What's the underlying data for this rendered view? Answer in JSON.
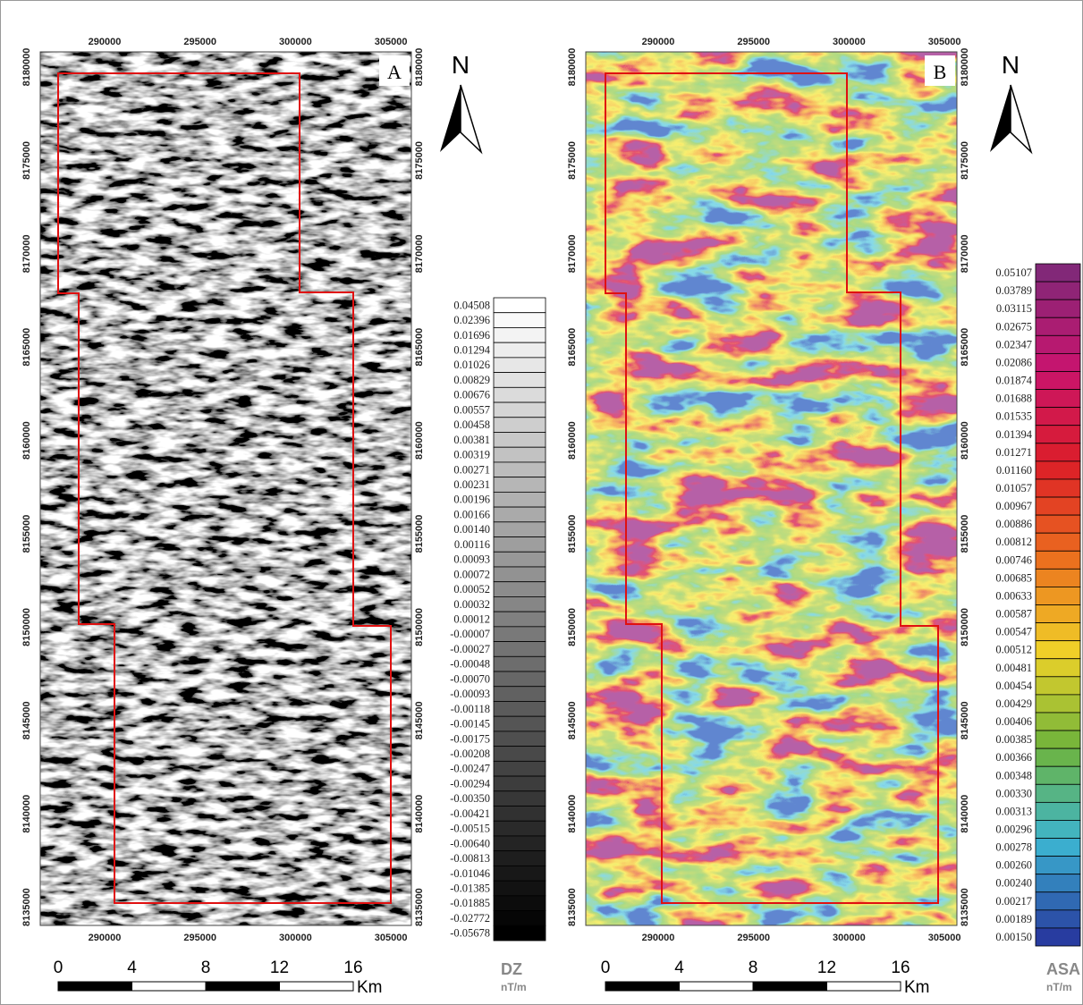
{
  "panels": [
    {
      "label": "A",
      "north": "N",
      "x_ticks": [
        "290000",
        "295000",
        "300000",
        "305000"
      ],
      "y_ticks": [
        "8180000",
        "8175000",
        "8170000",
        "8165000",
        "8160000",
        "8155000",
        "8150000",
        "8145000",
        "8140000",
        "8135000"
      ],
      "legend": {
        "title": "DZ",
        "unit": "nT/m",
        "values": [
          "0.04508",
          "0.02396",
          "0.01696",
          "0.01294",
          "0.01026",
          "0.00829",
          "0.00676",
          "0.00557",
          "0.00458",
          "0.00381",
          "0.00319",
          "0.00271",
          "0.00231",
          "0.00196",
          "0.00166",
          "0.00140",
          "0.00116",
          "0.00093",
          "0.00072",
          "0.00052",
          "0.00032",
          "0.00012",
          "-0.00007",
          "-0.00027",
          "-0.00048",
          "-0.00070",
          "-0.00093",
          "-0.00118",
          "-0.00145",
          "-0.00175",
          "-0.00208",
          "-0.00247",
          "-0.00294",
          "-0.00350",
          "-0.00421",
          "-0.00515",
          "-0.00640",
          "-0.00813",
          "-0.01046",
          "-0.01385",
          "-0.01885",
          "-0.02772",
          "-0.05678"
        ]
      },
      "scale": {
        "ticks": [
          "0",
          "4",
          "8",
          "12",
          "16"
        ],
        "unit": "Km"
      }
    },
    {
      "label": "B",
      "north": "N",
      "x_ticks": [
        "290000",
        "295000",
        "300000",
        "305000"
      ],
      "y_ticks": [
        "8180000",
        "8175000",
        "8170000",
        "8165000",
        "8160000",
        "8155000",
        "8150000",
        "8145000",
        "8140000",
        "8135000"
      ],
      "legend": {
        "title": "ASA",
        "unit": "nT/m",
        "values": [
          "0.05107",
          "0.03789",
          "0.03115",
          "0.02675",
          "0.02347",
          "0.02086",
          "0.01874",
          "0.01688",
          "0.01535",
          "0.01394",
          "0.01271",
          "0.01160",
          "0.01057",
          "0.00967",
          "0.00886",
          "0.00812",
          "0.00746",
          "0.00685",
          "0.00633",
          "0.00587",
          "0.00547",
          "0.00512",
          "0.00481",
          "0.00454",
          "0.00429",
          "0.00406",
          "0.00385",
          "0.00366",
          "0.00348",
          "0.00330",
          "0.00313",
          "0.00296",
          "0.00278",
          "0.00260",
          "0.00240",
          "0.00217",
          "0.00189",
          "0.00150"
        ]
      },
      "scale": {
        "ticks": [
          "0",
          "4",
          "8",
          "12",
          "16"
        ],
        "unit": "Km"
      }
    }
  ]
}
